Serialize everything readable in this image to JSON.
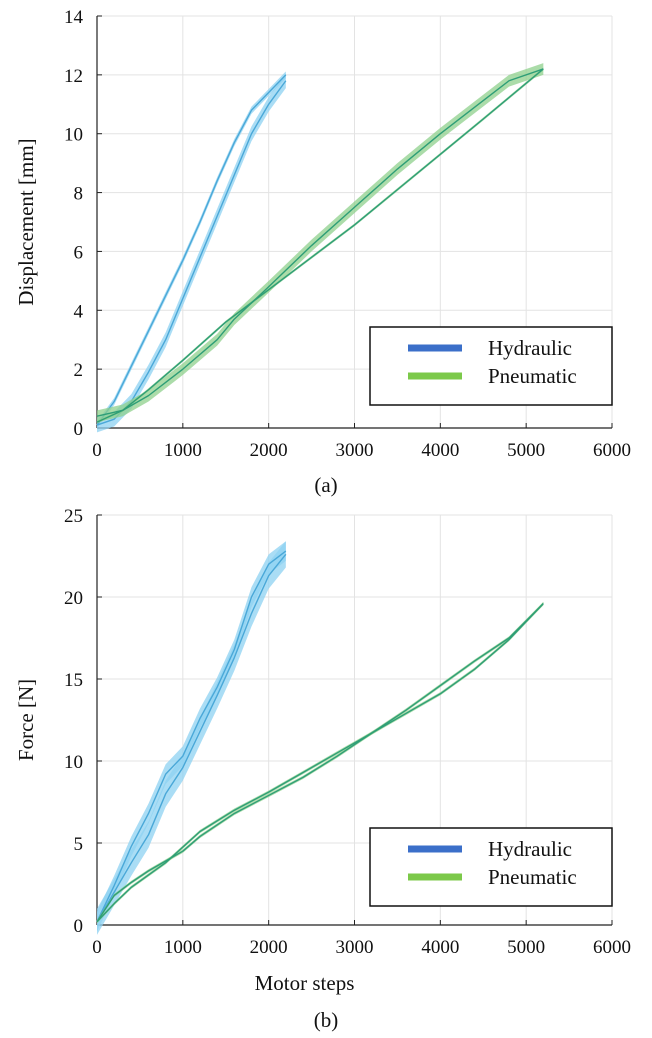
{
  "chart_data": [
    {
      "panel_caption": "(a)",
      "type": "line",
      "xlabel": "",
      "ylabel": "Displacement [mm]",
      "xlim": [
        0,
        6000
      ],
      "ylim": [
        0,
        14
      ],
      "x_ticks": [
        "0",
        "1000",
        "2000",
        "3000",
        "4000",
        "5000",
        "6000"
      ],
      "y_ticks": [
        "0",
        "2",
        "4",
        "6",
        "8",
        "10",
        "12",
        "14"
      ],
      "grid": true,
      "legend_position": "bottom-right",
      "legend": [
        "Hydraulic",
        "Pneumatic"
      ],
      "colors": {
        "hydraulic_line": "#4aa8d8",
        "hydraulic_band": "#8ed1f2",
        "hydraulic_legend": "#3b6fc9",
        "pneumatic_line": "#2e9e77",
        "pneumatic_band": "#8fd08c",
        "pneumatic_legend": "#7cc94a"
      },
      "series": [
        {
          "name": "Hydraulic",
          "curves": [
            {
              "phase": "loading",
              "band": 0.25,
              "x": [
                0,
                200,
                400,
                600,
                800,
                1000,
                1200,
                1400,
                1600,
                1800,
                2000,
                2200
              ],
              "y": [
                0.1,
                0.3,
                0.9,
                1.9,
                3.0,
                4.4,
                5.8,
                7.2,
                8.6,
                10.0,
                11.0,
                11.8
              ]
            },
            {
              "phase": "unloading",
              "band": 0.12,
              "x": [
                2200,
                1800,
                1600,
                1400,
                1200,
                1000,
                800,
                600,
                400,
                200,
                0
              ],
              "y": [
                12.0,
                10.8,
                9.7,
                8.4,
                7.0,
                5.7,
                4.5,
                3.3,
                2.1,
                0.9,
                0.1
              ]
            }
          ]
        },
        {
          "name": "Pneumatic",
          "curves": [
            {
              "phase": "loading",
              "band": 0.2,
              "x": [
                0,
                300,
                600,
                1000,
                1400,
                1600,
                2000,
                2500,
                3000,
                3500,
                4000,
                4400,
                4800,
                5200
              ],
              "y": [
                0.4,
                0.6,
                1.1,
                2.0,
                3.0,
                3.7,
                4.8,
                6.2,
                7.5,
                8.8,
                10.0,
                10.9,
                11.8,
                12.2
              ]
            },
            {
              "phase": "unloading",
              "band": 0.05,
              "x": [
                5200,
                4500,
                4000,
                3500,
                3000,
                2500,
                2000,
                1500,
                1000,
                600,
                300,
                0
              ],
              "y": [
                12.2,
                10.5,
                9.3,
                8.1,
                6.9,
                5.8,
                4.7,
                3.6,
                2.3,
                1.3,
                0.6,
                0.2
              ]
            }
          ]
        }
      ]
    },
    {
      "panel_caption": "(b)",
      "type": "line",
      "xlabel": "Motor steps",
      "ylabel": "Force [N]",
      "xlim": [
        0,
        6000
      ],
      "ylim": [
        0,
        25
      ],
      "x_ticks": [
        "0",
        "1000",
        "2000",
        "3000",
        "4000",
        "5000",
        "6000"
      ],
      "y_ticks": [
        "0",
        "5",
        "10",
        "15",
        "20",
        "25"
      ],
      "grid": true,
      "legend_position": "bottom-right",
      "legend": [
        "Hydraulic",
        "Pneumatic"
      ],
      "colors": {
        "hydraulic_line": "#4aa8d8",
        "hydraulic_band": "#8ed1f2",
        "hydraulic_legend": "#3b6fc9",
        "pneumatic_line": "#2e9e77",
        "pneumatic_band": "#8fd08c",
        "pneumatic_legend": "#7cc94a"
      },
      "series": [
        {
          "name": "Hydraulic",
          "curves": [
            {
              "phase": "loading",
              "band": 0.8,
              "x": [
                0,
                200,
                400,
                600,
                800,
                1000,
                1200,
                1400,
                1600,
                1800,
                2000,
                2200
              ],
              "y": [
                0.2,
                2.0,
                3.8,
                5.5,
                8.0,
                9.6,
                11.8,
                14.0,
                16.3,
                19.0,
                21.3,
                22.6
              ]
            },
            {
              "phase": "unloading",
              "band": 0.6,
              "x": [
                2200,
                2000,
                1800,
                1600,
                1400,
                1200,
                1000,
                800,
                600,
                400,
                200,
                0
              ],
              "y": [
                22.8,
                22.0,
                20.0,
                16.8,
                14.5,
                12.6,
                10.3,
                9.2,
                6.8,
                4.8,
                2.4,
                0.2
              ]
            }
          ]
        },
        {
          "name": "Pneumatic",
          "curves": [
            {
              "phase": "loading",
              "band": 0.1,
              "x": [
                0,
                200,
                400,
                600,
                800,
                1000,
                1200,
                1600,
                2000,
                2400,
                2800,
                3200,
                3600,
                4000,
                4400,
                4800,
                5200
              ],
              "y": [
                0.2,
                1.8,
                2.6,
                3.3,
                3.9,
                4.5,
                5.4,
                6.8,
                7.9,
                9.0,
                10.3,
                11.7,
                12.9,
                14.1,
                15.6,
                17.4,
                19.6
              ]
            },
            {
              "phase": "unloading",
              "band": 0.1,
              "x": [
                5200,
                4800,
                4400,
                4000,
                3600,
                3200,
                2800,
                2400,
                2000,
                1600,
                1200,
                800,
                400,
                200,
                0
              ],
              "y": [
                19.6,
                17.5,
                16.1,
                14.6,
                13.1,
                11.7,
                10.5,
                9.3,
                8.1,
                7.0,
                5.7,
                3.8,
                2.3,
                1.3,
                0.2
              ]
            }
          ]
        }
      ]
    }
  ]
}
